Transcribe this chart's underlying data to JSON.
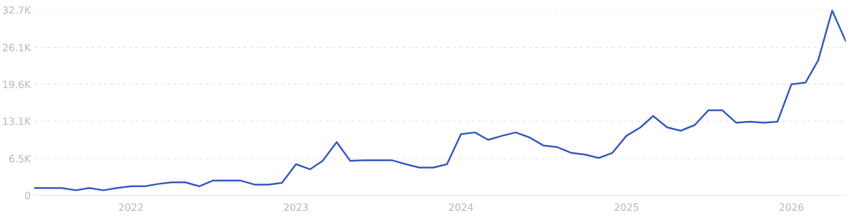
{
  "chart_data": {
    "type": "line",
    "x": [
      "2021-06",
      "2021-07",
      "2021-08",
      "2021-09",
      "2021-10",
      "2021-11",
      "2021-12",
      "2022-01",
      "2022-02",
      "2022-03",
      "2022-04",
      "2022-05",
      "2022-06",
      "2022-07",
      "2022-08",
      "2022-09",
      "2022-10",
      "2022-11",
      "2022-12",
      "2023-01",
      "2023-02",
      "2023-03",
      "2023-04",
      "2023-05",
      "2023-06",
      "2023-07",
      "2023-08",
      "2023-09",
      "2023-10",
      "2023-11",
      "2023-12",
      "2024-01",
      "2024-02",
      "2024-03",
      "2024-04",
      "2024-05",
      "2024-06",
      "2024-07",
      "2024-08",
      "2024-09",
      "2024-10",
      "2024-11",
      "2024-12",
      "2025-01",
      "2025-02",
      "2025-03",
      "2025-04",
      "2025-05",
      "2025-06",
      "2025-07",
      "2025-08",
      "2025-09",
      "2025-10",
      "2025-11",
      "2025-12",
      "2026-01",
      "2026-02",
      "2026-03",
      "2026-04",
      "2026-05"
    ],
    "series": [
      {
        "color": "#3b5fc0",
        "values": [
          1.3,
          1.3,
          1.3,
          0.9,
          1.3,
          0.9,
          1.3,
          1.6,
          1.6,
          2.0,
          2.3,
          2.3,
          1.6,
          2.6,
          2.6,
          2.6,
          1.9,
          1.9,
          2.2,
          5.5,
          4.6,
          6.1,
          9.4,
          6.1,
          6.2,
          6.2,
          6.2,
          5.5,
          4.9,
          4.9,
          5.5,
          10.8,
          11.1,
          9.8,
          10.5,
          11.1,
          10.2,
          8.8,
          8.5,
          7.5,
          7.2,
          6.6,
          7.5,
          10.5,
          12.0,
          14.0,
          12.0,
          11.4,
          12.4,
          15.0,
          15.0,
          12.8,
          13.0,
          12.8,
          13.0,
          19.6,
          19.9,
          23.8,
          32.6,
          27.2
        ]
      }
    ],
    "xlim": [
      "2021-06",
      "2026-05"
    ],
    "xticks": [
      {
        "value": "2022-01",
        "label": "2022"
      },
      {
        "value": "2023-01",
        "label": "2023"
      },
      {
        "value": "2024-01",
        "label": "2024"
      },
      {
        "value": "2025-01",
        "label": "2025"
      },
      {
        "value": "2026-01",
        "label": "2026"
      }
    ],
    "ylim": [
      0,
      32.7
    ],
    "yticks": [
      0,
      {
        "value": 6.5,
        "label": "6.5K"
      },
      {
        "value": 13.1,
        "label": "13.1K"
      },
      {
        "value": 19.6,
        "label": "19.6K"
      },
      {
        "value": 26.1,
        "label": "26.1K"
      },
      {
        "value": 32.7,
        "label": "32.7K"
      }
    ],
    "grid": "y",
    "marker": "none",
    "line_style": "solid"
  }
}
